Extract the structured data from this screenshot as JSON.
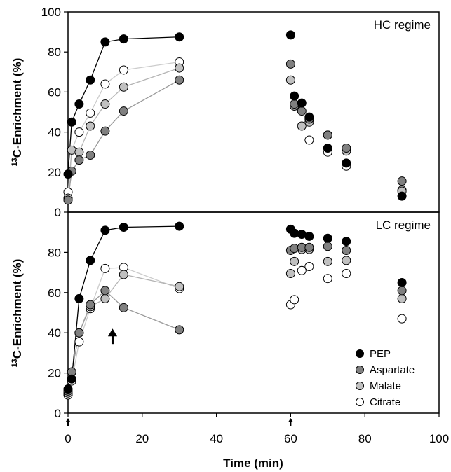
{
  "chart_data": {
    "type": "scatter",
    "xlabel": "Time (min)",
    "ylabel_superscript": "13",
    "ylabel_main": "C-Enrichment (%)",
    "xlim": [
      0,
      100
    ],
    "ylim": [
      0,
      100
    ],
    "xticks": [
      "0",
      "20",
      "40",
      "60",
      "80",
      "100"
    ],
    "yticks_top": [
      "0",
      "20",
      "40",
      "60",
      "80",
      "100"
    ],
    "yticks_bottom": [
      "0",
      "20",
      "40",
      "60",
      "80"
    ],
    "legend_position": "bottom-right",
    "series_styles": [
      {
        "name": "PEP",
        "fill": "#000000",
        "line": "#000000"
      },
      {
        "name": "Aspartate",
        "fill": "#808080",
        "line": "#9a9a9a"
      },
      {
        "name": "Malate",
        "fill": "#c0c0c0",
        "line": "#b4b4b4"
      },
      {
        "name": "Citrate",
        "fill": "#ffffff",
        "line": "#cccccc"
      }
    ],
    "panels": [
      {
        "label": "HC regime",
        "ylim": [
          0,
          100
        ],
        "series": [
          {
            "name": "PEP",
            "connected": [
              [
                0,
                19
              ],
              [
                1,
                45
              ],
              [
                3,
                54
              ],
              [
                6,
                66
              ],
              [
                10,
                85
              ],
              [
                15,
                86.5
              ],
              [
                30,
                87.5
              ]
            ],
            "scattered": [
              [
                60,
                88.5
              ],
              [
                61,
                58
              ],
              [
                63,
                54.5
              ],
              [
                65,
                47.5
              ],
              [
                70,
                32
              ],
              [
                75,
                24.5
              ],
              [
                90,
                8
              ]
            ]
          },
          {
            "name": "Aspartate",
            "connected": [
              [
                0,
                6
              ],
              [
                1,
                20.5
              ],
              [
                3,
                26
              ],
              [
                6,
                28.5
              ],
              [
                10,
                40.5
              ],
              [
                15,
                50.5
              ],
              [
                30,
                66
              ]
            ],
            "scattered": [
              [
                60,
                74
              ],
              [
                61,
                54
              ],
              [
                63,
                50.5
              ],
              [
                65,
                46.5
              ],
              [
                70,
                38.5
              ],
              [
                75,
                32
              ],
              [
                90,
                15.5
              ]
            ]
          },
          {
            "name": "Malate",
            "connected": [
              [
                0,
                7
              ],
              [
                1,
                31
              ],
              [
                3,
                30
              ],
              [
                6,
                43
              ],
              [
                10,
                54
              ],
              [
                15,
                62.5
              ],
              [
                30,
                72
              ]
            ],
            "scattered": [
              [
                60,
                66
              ],
              [
                61,
                53
              ],
              [
                63,
                43
              ],
              [
                65,
                45
              ],
              [
                70,
                38.5
              ],
              [
                75,
                30.5
              ],
              [
                90,
                10.5
              ]
            ]
          },
          {
            "name": "Citrate",
            "connected": [
              [
                0,
                10
              ],
              [
                1,
                31
              ],
              [
                3,
                40
              ],
              [
                6,
                49.5
              ],
              [
                10,
                64
              ],
              [
                15,
                71
              ],
              [
                30,
                75
              ]
            ],
            "scattered": [
              [
                61,
                53
              ],
              [
                65,
                36
              ],
              [
                70,
                30
              ],
              [
                75,
                23
              ],
              [
                90,
                11
              ]
            ]
          }
        ]
      },
      {
        "label": "LC regime",
        "ylim": [
          0,
          90
        ],
        "series": [
          {
            "name": "PEP",
            "connected": [
              [
                0,
                12
              ],
              [
                1,
                17
              ],
              [
                3,
                57
              ],
              [
                6,
                76
              ],
              [
                10,
                91
              ],
              [
                15,
                92.5
              ],
              [
                30,
                93
              ]
            ],
            "scattered": [
              [
                60,
                91.5
              ],
              [
                61,
                89.5
              ],
              [
                63,
                89
              ],
              [
                65,
                88
              ],
              [
                70,
                87
              ],
              [
                75,
                85.5
              ],
              [
                90,
                65
              ]
            ]
          },
          {
            "name": "Aspartate",
            "connected": [
              [
                0,
                11
              ],
              [
                1,
                20.5
              ],
              [
                3,
                40
              ],
              [
                6,
                54
              ],
              [
                10,
                61
              ],
              [
                15,
                52.5
              ],
              [
                30,
                41.5
              ]
            ],
            "scattered": [
              [
                60,
                81
              ],
              [
                61,
                82
              ],
              [
                63,
                82.5
              ],
              [
                65,
                82.5
              ],
              [
                70,
                83
              ],
              [
                75,
                81
              ],
              [
                90,
                61
              ]
            ]
          },
          {
            "name": "Malate",
            "connected": [
              [
                0,
                10
              ],
              [
                1,
                20.5
              ],
              [
                3,
                40
              ],
              [
                6,
                53
              ],
              [
                10,
                57
              ],
              [
                15,
                69
              ],
              [
                30,
                63
              ]
            ],
            "scattered": [
              [
                60,
                69.5
              ],
              [
                61,
                75.5
              ],
              [
                63,
                81.5
              ],
              [
                65,
                81.5
              ],
              [
                70,
                75.5
              ],
              [
                75,
                76
              ],
              [
                90,
                57
              ]
            ]
          },
          {
            "name": "Citrate",
            "connected": [
              [
                0,
                9
              ],
              [
                1,
                16
              ],
              [
                3,
                35.5
              ],
              [
                6,
                52
              ],
              [
                10,
                72
              ],
              [
                15,
                72.5
              ],
              [
                30,
                62
              ]
            ],
            "scattered": [
              [
                60,
                54
              ],
              [
                61,
                56.5
              ],
              [
                63,
                71
              ],
              [
                65,
                73
              ],
              [
                70,
                67
              ],
              [
                75,
                69.5
              ],
              [
                90,
                47
              ]
            ]
          }
        ]
      }
    ],
    "annotations": [
      {
        "symbol": "arrow-up",
        "panel": 1,
        "x": 12,
        "y": 40
      },
      {
        "symbol": "arrow-up",
        "panel": "x-axis",
        "x": 0
      },
      {
        "symbol": "arrow-up",
        "panel": "x-axis",
        "x": 60
      }
    ]
  }
}
